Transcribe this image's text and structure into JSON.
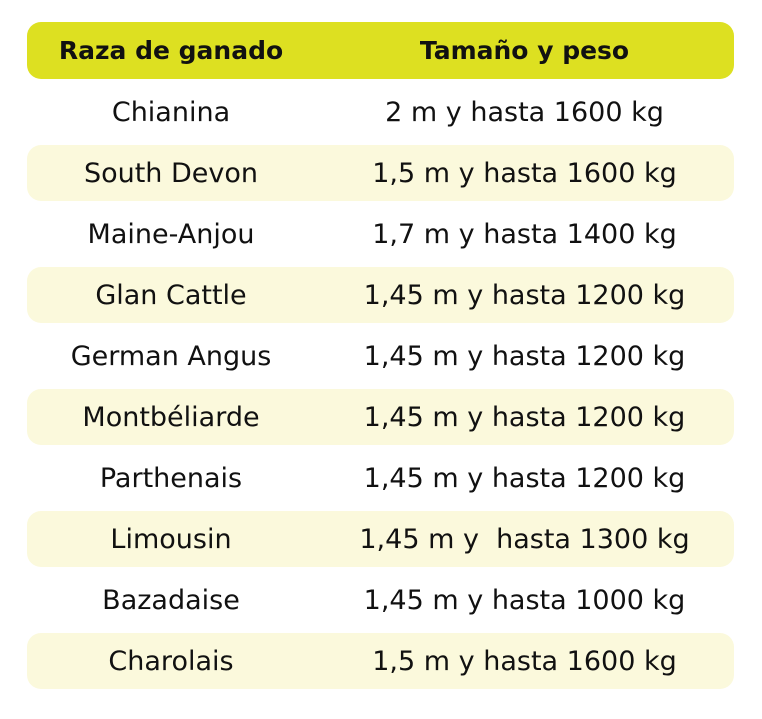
{
  "colors": {
    "header_bg": "#dde021",
    "stripe_bg": "#fbf9dc",
    "plain_bg": "#ffffff",
    "text": "#111111"
  },
  "table": {
    "headers": [
      "Raza de ganado",
      "Tamaño y peso"
    ],
    "rows": [
      [
        "Chianina",
        "2 m y hasta 1600 kg"
      ],
      [
        "South Devon",
        "1,5 m y hasta 1600 kg"
      ],
      [
        "Maine-Anjou",
        "1,7 m y hasta 1400 kg"
      ],
      [
        "Glan Cattle",
        "1,45 m y hasta 1200 kg"
      ],
      [
        "German Angus",
        "1,45 m y hasta 1200 kg"
      ],
      [
        "Montbéliarde",
        "1,45 m y hasta 1200 kg"
      ],
      [
        "Parthenais",
        "1,45 m y hasta 1200 kg"
      ],
      [
        "Limousin",
        "1,45 m y  hasta 1300 kg"
      ],
      [
        "Bazadaise",
        "1,45 m y hasta 1000 kg"
      ],
      [
        "Charolais",
        "1,5 m y hasta 1600 kg"
      ]
    ]
  }
}
